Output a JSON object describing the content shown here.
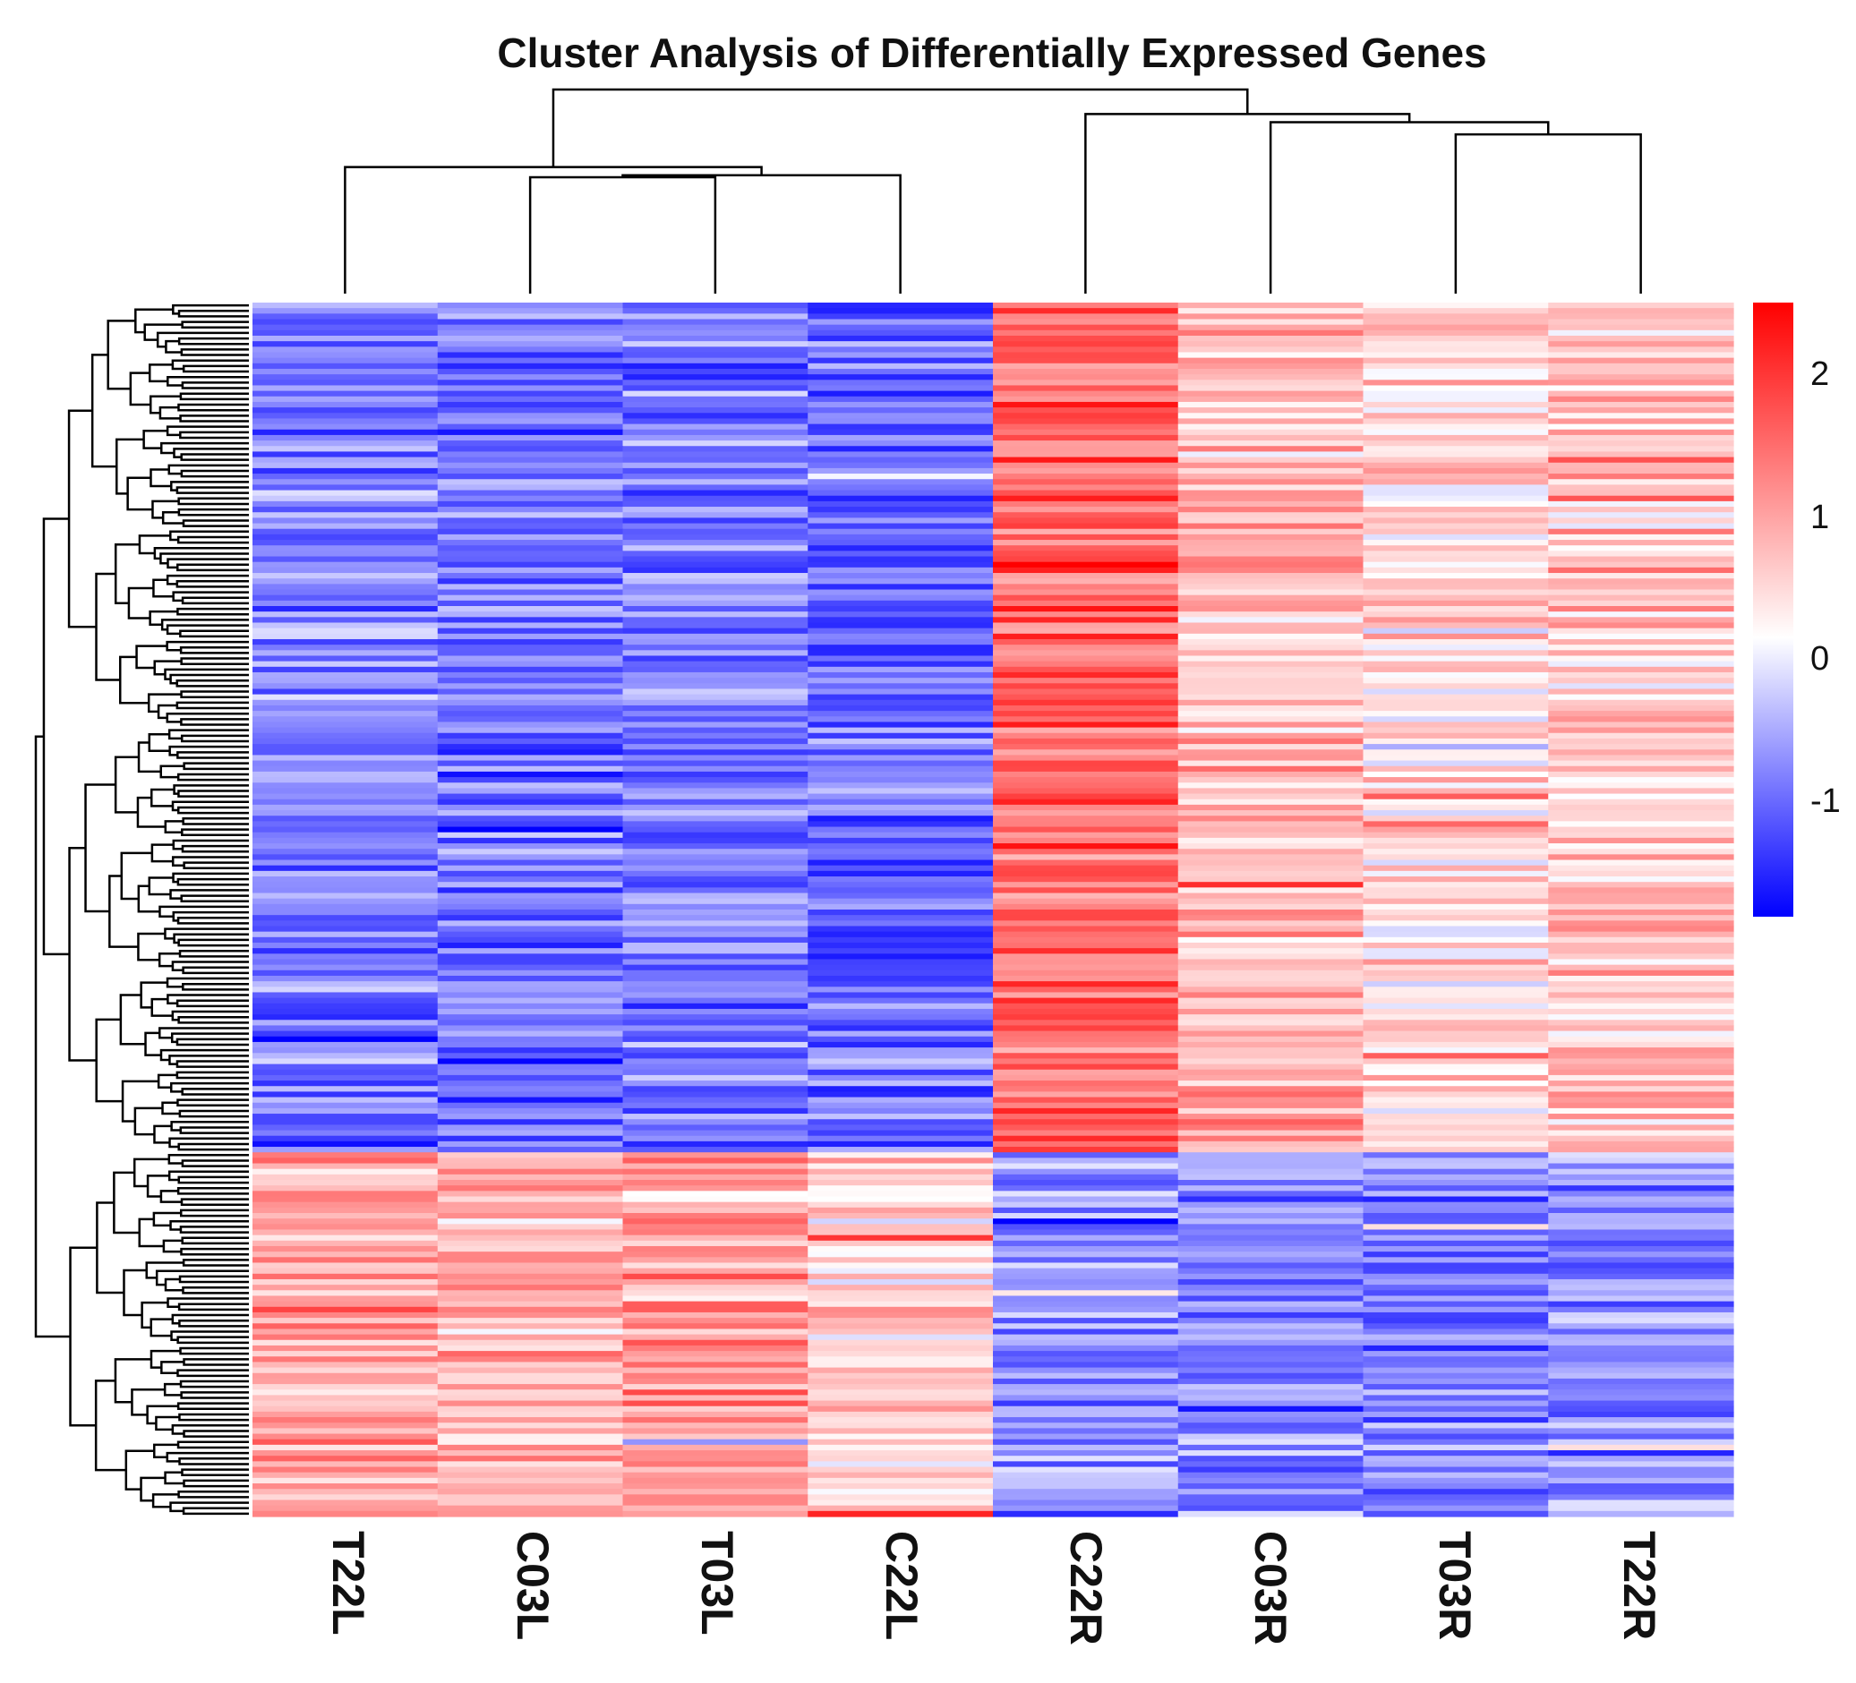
{
  "chart_data": {
    "type": "heatmap",
    "title": "Cluster Analysis of Differentially Expressed Genes",
    "columns": [
      "T22L",
      "C03L",
      "T03L",
      "C22L",
      "C22R",
      "C03R",
      "T03R",
      "T22R"
    ],
    "n_rows": 220,
    "color_scale": {
      "min": -1.7,
      "mid": 0.3,
      "max": 2.5,
      "low_color": "#0000ff",
      "mid_color": "#ffffff",
      "high_color": "#ff0000",
      "ticks": [
        "2",
        "1",
        "0",
        "-1"
      ],
      "tick_values": [
        2,
        1,
        0,
        -1
      ]
    },
    "row_blocks": [
      {
        "rows": 154,
        "means": [
          -0.7,
          -0.8,
          -0.75,
          -0.85,
          1.6,
          0.9,
          0.6,
          0.8
        ],
        "note": "left-tissue genes low, right-tissue genes high"
      },
      {
        "rows": 66,
        "means": [
          1.0,
          0.9,
          1.1,
          0.7,
          -0.6,
          -0.7,
          -0.75,
          -0.6
        ],
        "note": "left-tissue genes high, right-tissue genes low"
      }
    ],
    "column_dendrogram": [
      {
        "merge": [
          "C03L",
          "T03L"
        ],
        "height": 0.57
      },
      {
        "merge": [
          "C03L+T03L",
          "C22L"
        ],
        "height": 0.58
      },
      {
        "merge": [
          "T22L",
          "C03L+T03L+C22L"
        ],
        "height": 0.62
      },
      {
        "merge": [
          "T03R",
          "T22R"
        ],
        "height": 0.78
      },
      {
        "merge": [
          "C03R",
          "T03R+T22R"
        ],
        "height": 0.84
      },
      {
        "merge": [
          "C22R",
          "C03R+T03R+T22R"
        ],
        "height": 0.88
      },
      {
        "merge": [
          "left_group",
          "right_group"
        ],
        "height": 1.0
      }
    ]
  }
}
